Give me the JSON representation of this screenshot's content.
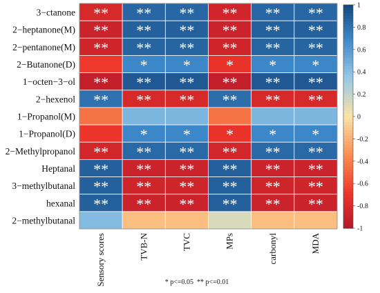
{
  "chart_data": {
    "type": "heatmap",
    "rows": [
      "3−ctanone",
      "2−heptanone(M)",
      "2−pentanone(M)",
      "2−Butanone(D)",
      "1−octen−3−ol",
      "2−hexenol",
      "1−Propanol(M)",
      "1−Propanol(D)",
      "2−Methylpropanol",
      "Heptanal",
      "3−methylbutanal",
      "hexanal",
      "2−methylbutanal"
    ],
    "columns": [
      "Sensory scores",
      "TVB-N",
      "TVC",
      "MPs",
      "carbonyl",
      "MDA"
    ],
    "values": [
      [
        -0.82,
        0.85,
        0.85,
        -0.85,
        0.85,
        0.85
      ],
      [
        -0.88,
        0.88,
        0.88,
        -0.88,
        0.88,
        0.88
      ],
      [
        -0.86,
        0.86,
        0.86,
        -0.86,
        0.86,
        0.86
      ],
      [
        -0.68,
        0.7,
        0.7,
        -0.72,
        0.7,
        0.7
      ],
      [
        -0.92,
        0.92,
        0.92,
        -0.92,
        0.92,
        0.92
      ],
      [
        0.8,
        -0.82,
        -0.82,
        0.82,
        -0.82,
        -0.82
      ],
      [
        -0.45,
        0.45,
        0.45,
        -0.45,
        0.45,
        0.45
      ],
      [
        -0.7,
        0.7,
        0.7,
        -0.72,
        0.7,
        0.7
      ],
      [
        -0.84,
        0.84,
        0.84,
        -0.84,
        0.84,
        0.84
      ],
      [
        0.88,
        -0.88,
        -0.88,
        0.88,
        -0.88,
        -0.88
      ],
      [
        0.88,
        -0.86,
        -0.86,
        0.88,
        -0.86,
        -0.86
      ],
      [
        0.88,
        -0.88,
        -0.88,
        0.88,
        -0.88,
        -0.88
      ],
      [
        0.42,
        -0.15,
        -0.15,
        0.12,
        -0.15,
        -0.15
      ]
    ],
    "significance": [
      [
        "**",
        "**",
        "**",
        "**",
        "**",
        "**"
      ],
      [
        "**",
        "**",
        "**",
        "**",
        "**",
        "**"
      ],
      [
        "**",
        "**",
        "**",
        "**",
        "**",
        "**"
      ],
      [
        "",
        "*",
        "*",
        "*",
        "*",
        "*"
      ],
      [
        "**",
        "**",
        "**",
        "**",
        "**",
        "**"
      ],
      [
        "**",
        "**",
        "**",
        "**",
        "**",
        "**"
      ],
      [
        "",
        "",
        "",
        "",
        "",
        ""
      ],
      [
        "",
        "*",
        "*",
        "*",
        "*",
        "*"
      ],
      [
        "**",
        "**",
        "**",
        "**",
        "**",
        "**"
      ],
      [
        "**",
        "**",
        "**",
        "**",
        "**",
        "**"
      ],
      [
        "**",
        "**",
        "**",
        "**",
        "**",
        "**"
      ],
      [
        "**",
        "**",
        "**",
        "**",
        "**",
        "**"
      ],
      [
        "",
        "",
        "",
        "",
        "",
        ""
      ]
    ],
    "colorbar": {
      "min": -1,
      "max": 1,
      "ticks": [
        "1",
        "0.8",
        "0.6",
        "0.4",
        "0.2",
        "0",
        "-0.2",
        "-0.4",
        "-0.6",
        "-0.8",
        "-1"
      ],
      "colors": {
        "negative": "#b2182b",
        "mid": "#fbe3a6",
        "positive": "#14477e"
      }
    },
    "footnote": "* p<=0.05  ** p<=0.01"
  }
}
